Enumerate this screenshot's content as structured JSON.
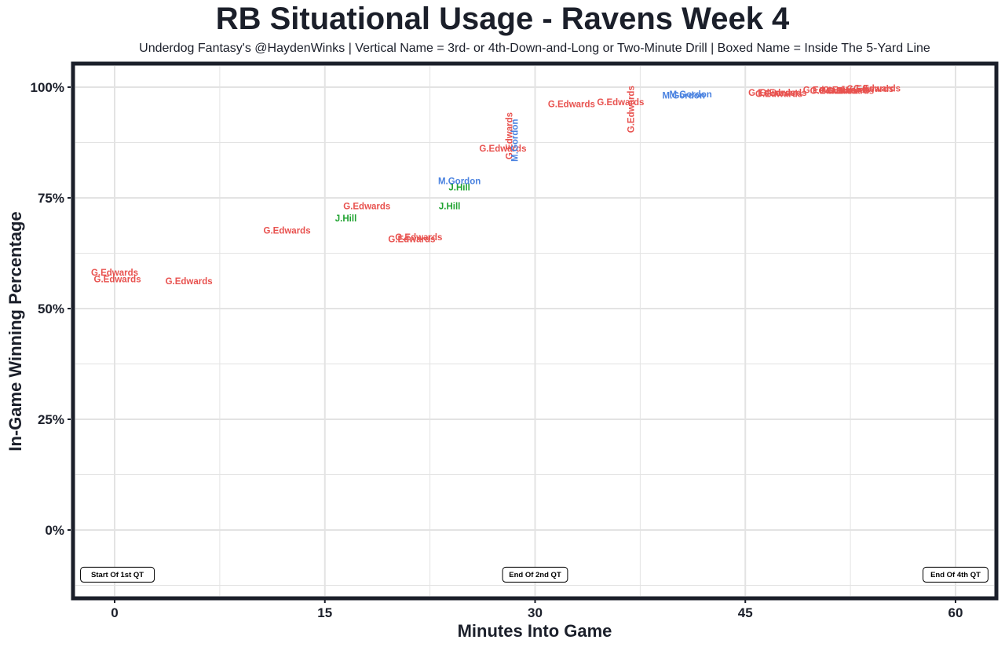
{
  "title": "RB Situational Usage - Ravens Week 4",
  "subtitle": "Underdog Fantasy's @HaydenWinks | Vertical Name = 3rd- or 4th-Down-and-Long or Two-Minute Drill | Boxed Name = Inside The 5-Yard Line",
  "colors": {
    "G.Edwards": "#e8524f",
    "M.Gordon": "#4a82e0",
    "J.Hill": "#1fa330",
    "frame": "#1b1f2a",
    "grid": "#e3e3e3"
  },
  "chart_data": {
    "type": "scatter",
    "title": "RB Situational Usage - Ravens Week 4",
    "xlabel": "Minutes Into Game",
    "ylabel": "In-Game Winning Percentage",
    "xlim": [
      -3,
      63
    ],
    "ylim": [
      -15,
      105
    ],
    "x_ticks": [
      0,
      15,
      30,
      45,
      60
    ],
    "x_tick_labels": [
      "0",
      "15",
      "30",
      "45",
      "60"
    ],
    "y_ticks": [
      0,
      25,
      50,
      75,
      100
    ],
    "y_tick_labels": [
      "0%",
      "25%",
      "50%",
      "75%",
      "100%"
    ],
    "grid": true,
    "legend": "none",
    "annotations": [
      {
        "label": "Start Of 1st QT",
        "x": 0.2,
        "y": -10
      },
      {
        "label": "End Of 2nd QT",
        "x": 30,
        "y": -10
      },
      {
        "label": "End Of 4th QT",
        "x": 60,
        "y": -10
      }
    ],
    "points": [
      {
        "label": "G.Edwards",
        "x": 0,
        "y": 58,
        "vertical": false
      },
      {
        "label": "G.Edwards",
        "x": 0.2,
        "y": 56.5,
        "vertical": false
      },
      {
        "label": "G.Edwards",
        "x": 5.3,
        "y": 56,
        "vertical": false
      },
      {
        "label": "G.Edwards",
        "x": 12.3,
        "y": 67.5,
        "vertical": false
      },
      {
        "label": "J.Hill",
        "x": 16.5,
        "y": 70.2,
        "vertical": false
      },
      {
        "label": "G.Edwards",
        "x": 18,
        "y": 73,
        "vertical": false
      },
      {
        "label": "G.Edwards",
        "x": 21.2,
        "y": 65.5,
        "vertical": false
      },
      {
        "label": "G.Edwards",
        "x": 21.7,
        "y": 66,
        "vertical": false
      },
      {
        "label": "J.Hill",
        "x": 23.9,
        "y": 73,
        "vertical": false
      },
      {
        "label": "J.Hill",
        "x": 24.6,
        "y": 77.2,
        "vertical": false
      },
      {
        "label": "M.Gordon",
        "x": 24.6,
        "y": 78.6,
        "vertical": false
      },
      {
        "label": "G.Edwards",
        "x": 27.7,
        "y": 86,
        "vertical": false
      },
      {
        "label": "G.Edwards",
        "x": 28.2,
        "y": 89,
        "vertical": true
      },
      {
        "label": "M.Gordon",
        "x": 28.6,
        "y": 88,
        "vertical": true
      },
      {
        "label": "G.Edwards",
        "x": 32.6,
        "y": 96,
        "vertical": false
      },
      {
        "label": "G.Edwards",
        "x": 36.1,
        "y": 96.5,
        "vertical": false
      },
      {
        "label": "G.Edwards",
        "x": 36.9,
        "y": 95,
        "vertical": true
      },
      {
        "label": "M.Gordon",
        "x": 40.6,
        "y": 98,
        "vertical": false
      },
      {
        "label": "M.Gordon",
        "x": 41.1,
        "y": 98.2,
        "vertical": false
      },
      {
        "label": "G.Edwards",
        "x": 46.9,
        "y": 98.6,
        "vertical": false
      },
      {
        "label": "G.Edwards",
        "x": 47.4,
        "y": 98.3,
        "vertical": false
      },
      {
        "label": "G.Edwards",
        "x": 47.7,
        "y": 98.6,
        "vertical": false
      },
      {
        "label": "G.Edwards",
        "x": 50.8,
        "y": 99.2,
        "vertical": false
      },
      {
        "label": "G.Edwards",
        "x": 51.3,
        "y": 99,
        "vertical": false
      },
      {
        "label": "G.Edwards",
        "x": 52.2,
        "y": 99.2,
        "vertical": false
      },
      {
        "label": "G.Edwards",
        "x": 52.5,
        "y": 99,
        "vertical": false
      },
      {
        "label": "G.Edwards",
        "x": 53.9,
        "y": 99.5,
        "vertical": false
      },
      {
        "label": "G.Edwards",
        "x": 54.4,
        "y": 99.6,
        "vertical": false
      }
    ]
  }
}
